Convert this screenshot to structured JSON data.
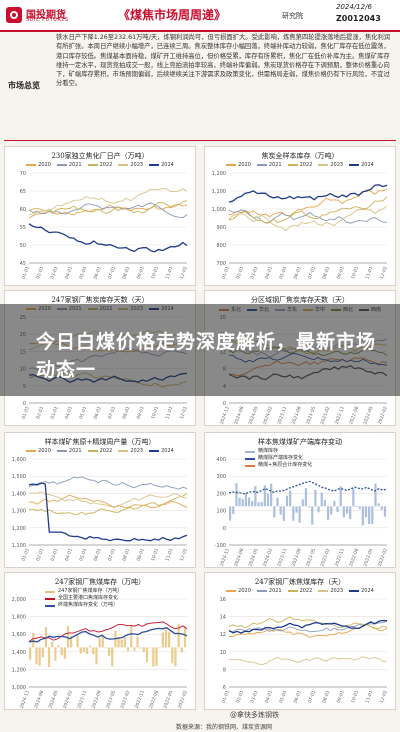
{
  "header": {
    "logo_cn": "国投期货",
    "logo_en": "SDIC FUTURES",
    "report_title": "《煤焦市场周周递》",
    "department": "研究院",
    "date": "2024/12/6",
    "code": "Z0012043"
  },
  "market": {
    "label": "市场总览",
    "text": "铁水日产下降1.26至232.61万吨/天，炼钢利润尚可，但亏损面扩大。受此影响，炼焦第四轮提涨落地后提涨，焦化利润有所扩张。本周日产继续小幅增产，已连续三周。焦炭整体库存小幅回落，终端补库动力较弱，焦化厂库存在低位震荡，港口库存较低。焦煤基本面持稳，煤矿开工维持高位，但价格受累，库存有所累积，焦化厂在低价补库为主。焦煤矿库存维持一定水平，现货竞拍成交一般，线上竞拍流拍率较高，终端补库偏弱。焦炭现货价格存在下调预期，整体价格重心向下，矿端库存累积，市场预期偏弱，后续继续关注下游需求及政策变化，供需格局走弱，煤焦价格仍有下行风险，不宜过分看空。"
  },
  "charts": [
    {
      "title": "230家独立焦化厂日产（万吨）",
      "legend": [
        "2020",
        "2021",
        "2022",
        "2023",
        "2024"
      ]
    },
    {
      "title": "焦炭全样本库存（万吨）",
      "legend": [
        "2020",
        "2021",
        "2022",
        "2023",
        "2024"
      ]
    },
    {
      "title": "247家钢厂焦炭库存天数（天）",
      "legend": [
        "2020",
        "2021",
        "2022",
        "2023",
        "2024"
      ]
    },
    {
      "title": "分区域钢厂焦炭库存天数（天）",
      "legend": [
        "东北",
        "华北",
        "华东",
        "华中",
        "西北",
        "西南"
      ]
    },
    {
      "title": "样本煤矿焦原+精煤周产量（万吨）",
      "legend": [
        "2020",
        "2021",
        "2022",
        "2023",
        "2024"
      ]
    },
    {
      "title": "样本焦煤煤矿产端库存变动",
      "legend": [
        "精煤库存",
        "精煤除产端库存变化",
        "精煤+焦原合计库存变化"
      ]
    },
    {
      "title": "247家钢厂焦煤库存（万吨）",
      "legend": [
        "247家钢厂焦煤库存（万吨）",
        "全国主要港口焦煤库存变化",
        "终端焦煤库存变化（万吨）"
      ]
    },
    {
      "title": "247家钢厂炼焦煤库存（天）",
      "legend": [
        "2020",
        "2021",
        "2022",
        "2023",
        "2024"
      ]
    }
  ],
  "overlay": {
    "headline": "今日白煤价格走势深度解析，最新市场动态一"
  },
  "footer": {
    "watermark": "@拿快多炼钢铁",
    "source": "数据来源：我的钢铁网、煤炭资源网"
  },
  "colors": {
    "brand_red": "#c8102e",
    "s2020": "#e8a64c",
    "s2021": "#8a9bb8",
    "s2022": "#c9b35a",
    "s2023": "#d6c38a",
    "s2024": "#1e3a8a"
  }
}
